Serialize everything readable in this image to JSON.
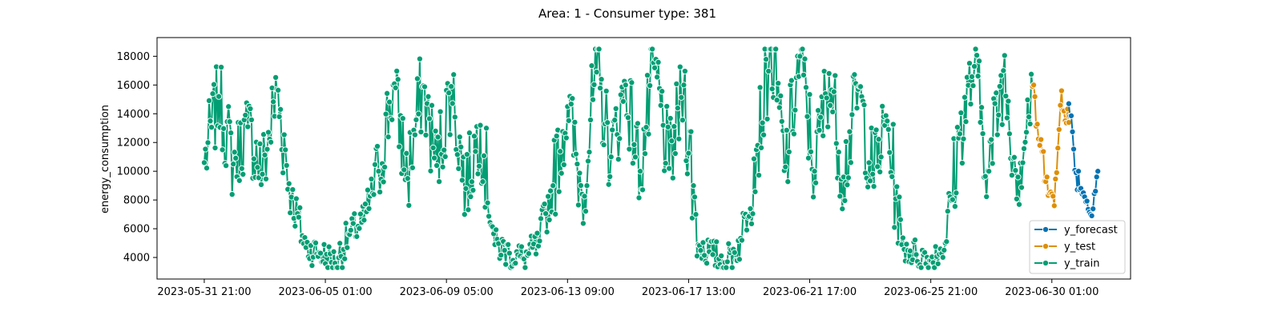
{
  "chart_data": {
    "type": "line",
    "title": "Area: 1 - Consumer type: 381",
    "xlabel": "",
    "ylabel": "energy_consumption",
    "xlim": [
      "2023-05-30 06:00",
      "2023-07-02 18:00"
    ],
    "ylim": [
      2500,
      19300
    ],
    "y_ticks": [
      4000,
      6000,
      8000,
      10000,
      12000,
      14000,
      16000,
      18000
    ],
    "x_ticks": [
      "2023-05-31 21:00",
      "2023-06-05 01:00",
      "2023-06-09 05:00",
      "2023-06-13 09:00",
      "2023-06-17 13:00",
      "2023-06-21 17:00",
      "2023-06-25 21:00",
      "2023-06-30 01:00"
    ],
    "grid": false,
    "legend_position": "lower-right",
    "colors": {
      "y_forecast": "#0173b2",
      "y_test": "#de8f05",
      "y_train": "#029e73"
    },
    "series": [
      {
        "name": "y_train",
        "x": [
          "2023-05-31 21:00",
          "2023-06-01 09:00",
          "2023-06-01 21:00",
          "2023-06-02 09:00",
          "2023-06-02 21:00",
          "2023-06-03 09:00",
          "2023-06-03 21:00",
          "2023-06-04 09:00",
          "2023-06-04 21:00",
          "2023-06-05 09:00",
          "2023-06-05 21:00",
          "2023-06-06 09:00",
          "2023-06-06 21:00",
          "2023-06-07 09:00",
          "2023-06-07 21:00",
          "2023-06-08 09:00",
          "2023-06-08 21:00",
          "2023-06-09 09:00",
          "2023-06-09 21:00",
          "2023-06-10 09:00",
          "2023-06-10 21:00",
          "2023-06-11 09:00",
          "2023-06-11 21:00",
          "2023-06-12 09:00",
          "2023-06-12 21:00",
          "2023-06-13 09:00",
          "2023-06-13 21:00",
          "2023-06-14 09:00",
          "2023-06-14 21:00",
          "2023-06-15 09:00",
          "2023-06-15 21:00",
          "2023-06-16 09:00",
          "2023-06-16 21:00",
          "2023-06-17 09:00",
          "2023-06-17 21:00",
          "2023-06-18 09:00",
          "2023-06-18 21:00",
          "2023-06-19 09:00",
          "2023-06-19 21:00",
          "2023-06-20 09:00",
          "2023-06-20 21:00",
          "2023-06-21 09:00",
          "2023-06-21 21:00",
          "2023-06-22 09:00",
          "2023-06-22 21:00",
          "2023-06-23 09:00",
          "2023-06-23 21:00",
          "2023-06-24 09:00",
          "2023-06-24 21:00",
          "2023-06-25 09:00",
          "2023-06-25 21:00",
          "2023-06-26 09:00",
          "2023-06-26 21:00",
          "2023-06-27 09:00",
          "2023-06-27 21:00",
          "2023-06-28 09:00",
          "2023-06-28 21:00",
          "2023-06-29 09:00"
        ],
        "y": [
          10600,
          15200,
          10500,
          13100,
          9800,
          15700,
          8200,
          4700,
          4300,
          3600,
          5600,
          6600,
          10000,
          16000,
          9500,
          15900,
          10400,
          15900,
          8800,
          13200,
          4900,
          4300,
          3900,
          4800,
          9000,
          14500,
          8400,
          16900,
          11000,
          16000,
          10000,
          17200,
          10200,
          16000,
          4900,
          4200,
          3700,
          5200,
          11500,
          18500,
          10300,
          18000,
          10000,
          16800,
          9600,
          15700,
          9800,
          13500,
          4900,
          4200,
          3800,
          5000,
          12600,
          17300,
          10000,
          17000,
          9600,
          15900
        ],
        "y_min": 3300,
        "y_max": 18500
      },
      {
        "name": "y_test",
        "x": [
          "2023-06-29 09:00",
          "2023-06-29 15:00",
          "2023-06-29 21:00",
          "2023-06-30 03:00",
          "2023-06-30 09:00",
          "2023-06-30 15:00"
        ],
        "y": [
          15900,
          11800,
          9600,
          7600,
          15600,
          13400
        ]
      },
      {
        "name": "y_forecast",
        "x": [
          "2023-06-30 15:00",
          "2023-06-30 21:00",
          "2023-07-01 03:00",
          "2023-07-01 09:00",
          "2023-07-01 15:00"
        ],
        "y": [
          14700,
          9900,
          8500,
          7000,
          10000
        ]
      }
    ]
  }
}
